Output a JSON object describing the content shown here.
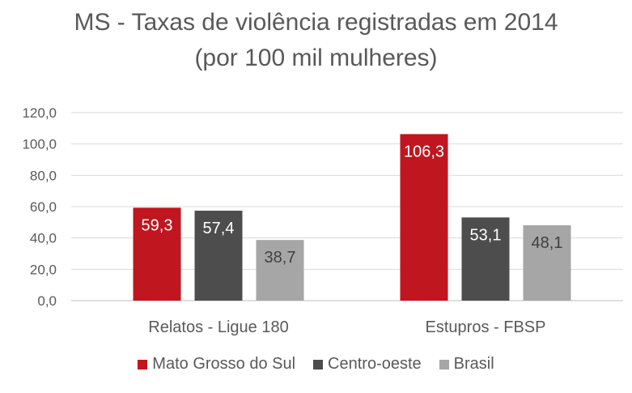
{
  "chart_data": {
    "type": "bar",
    "title_line1": "MS - Taxas de violência registradas em 2014",
    "title_line2": "(por 100 mil mulheres)",
    "categories": [
      "Relatos - Ligue 180",
      "Estupros - FBSP"
    ],
    "series": [
      {
        "name": "Mato Grosso do Sul",
        "color": "#C0161F",
        "values": [
          59.3,
          106.3
        ],
        "labels": [
          "59,3",
          "106,3"
        ],
        "label_color": "#ffffff"
      },
      {
        "name": "Centro-oeste",
        "color": "#4D4D4D",
        "values": [
          57.4,
          53.1
        ],
        "labels": [
          "57,4",
          "53,1"
        ],
        "label_color": "#ffffff"
      },
      {
        "name": "Brasil",
        "color": "#A6A6A6",
        "values": [
          38.7,
          48.1
        ],
        "labels": [
          "38,7",
          "48,1"
        ],
        "label_color": "#404040"
      }
    ],
    "yticks": [
      "0,0",
      "20,0",
      "40,0",
      "60,0",
      "80,0",
      "100,0",
      "120,0"
    ],
    "ylim": [
      0,
      120
    ],
    "grid": true,
    "legend_position": "bottom"
  }
}
